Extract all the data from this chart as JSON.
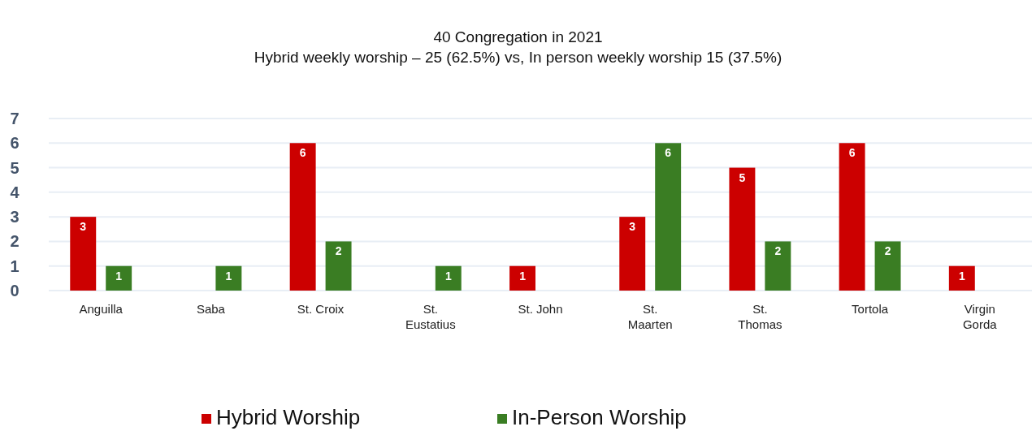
{
  "chart_data": {
    "type": "bar",
    "title": "40 Congregation in 2021",
    "subtitle": "Hybrid weekly worship – 25 (62.5%) vs, In person weekly worship 15 (37.5%)",
    "categories": [
      "Anguilla",
      "Saba",
      "St. Croix",
      "St. Eustatius",
      "St. John",
      "St. Maarten",
      "St. Thomas",
      "Tortola",
      "Virgin Gorda"
    ],
    "series": [
      {
        "name": "Hybrid Worship",
        "color": "#cc0000",
        "values": [
          3,
          null,
          6,
          null,
          1,
          3,
          5,
          6,
          1
        ]
      },
      {
        "name": "In-Person Worship",
        "color": "#3a7d23",
        "values": [
          1,
          1,
          2,
          1,
          null,
          6,
          2,
          2,
          null
        ]
      }
    ],
    "ylim": [
      0,
      7
    ],
    "yticks": [
      0,
      1,
      2,
      3,
      4,
      5,
      6,
      7
    ],
    "grid": "y",
    "legend": "bottom",
    "data_labels": true
  }
}
